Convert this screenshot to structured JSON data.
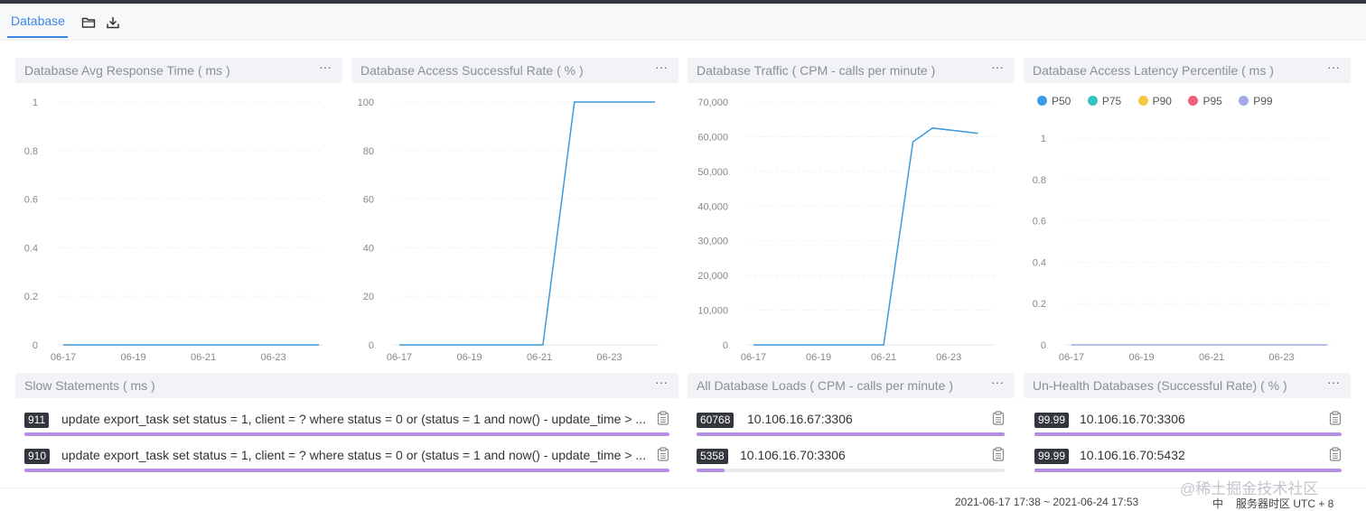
{
  "tabs": [
    {
      "label": "Database",
      "active": true
    }
  ],
  "toolbar": {
    "folder_icon": "folder-icon",
    "download_icon": "download-icon"
  },
  "panels": [
    {
      "title": "Database Avg Response Time ( ms )",
      "more": "···"
    },
    {
      "title": "Database Access Successful Rate ( % )",
      "more": "···"
    },
    {
      "title": "Database Traffic ( CPM - calls per minute )",
      "more": "···"
    },
    {
      "title": "Database Access Latency Percentile ( ms )",
      "more": "···"
    },
    {
      "title": "Slow Statements ( ms )",
      "more": "···"
    },
    {
      "title": "All Database Loads ( CPM - calls per minute )",
      "more": "···"
    },
    {
      "title": "Un-Health Databases (Successful Rate) ( % )",
      "more": "···"
    }
  ],
  "chart_data": [
    {
      "type": "line",
      "title": "Database Avg Response Time ( ms )",
      "x_ticks": [
        "06-17",
        "06-19",
        "06-21",
        "06-23"
      ],
      "y_ticks": [
        "0",
        "0.2",
        "0.4",
        "0.6",
        "0.8",
        "1"
      ],
      "ylim": [
        0,
        1
      ],
      "series": [
        {
          "color": "#3d9ad9",
          "points": [
            [
              0,
              0
            ],
            [
              7.3,
              0
            ]
          ]
        }
      ]
    },
    {
      "type": "line",
      "title": "Database Access Successful Rate ( % )",
      "x_ticks": [
        "06-17",
        "06-19",
        "06-21",
        "06-23"
      ],
      "y_ticks": [
        "0",
        "20",
        "40",
        "60",
        "80",
        "100"
      ],
      "ylim": [
        0,
        100
      ],
      "series": [
        {
          "color": "#3d9ad9",
          "points": [
            [
              0,
              0
            ],
            [
              4.1,
              0
            ],
            [
              5.0,
              100
            ],
            [
              7.3,
              100
            ]
          ]
        }
      ]
    },
    {
      "type": "line",
      "title": "Database Traffic ( CPM - calls per minute )",
      "x_ticks": [
        "06-17",
        "06-19",
        "06-21",
        "06-23"
      ],
      "y_ticks": [
        "0",
        "10,000",
        "20,000",
        "30,000",
        "40,000",
        "50,000",
        "60,000",
        "70,000"
      ],
      "ylim": [
        0,
        70000
      ],
      "series": [
        {
          "color": "#3d9ad9",
          "points": [
            [
              0,
              0
            ],
            [
              4.0,
              0
            ],
            [
              4.9,
              58500
            ],
            [
              5.5,
              62500
            ],
            [
              6.9,
              61000
            ]
          ]
        }
      ]
    },
    {
      "type": "line",
      "title": "Database Access Latency Percentile ( ms )",
      "x_ticks": [
        "06-17",
        "06-19",
        "06-21",
        "06-23"
      ],
      "y_ticks": [
        "0",
        "0.2",
        "0.4",
        "0.6",
        "0.8",
        "1"
      ],
      "ylim": [
        0,
        1
      ],
      "legend": [
        {
          "name": "P50",
          "color": "#3b9be6"
        },
        {
          "name": "P75",
          "color": "#36c2c2"
        },
        {
          "name": "P90",
          "color": "#f5c842"
        },
        {
          "name": "P95",
          "color": "#f0607e"
        },
        {
          "name": "P99",
          "color": "#a3a8e6"
        }
      ],
      "series": [
        {
          "color": "#a3a8e6",
          "points": [
            [
              0,
              0
            ],
            [
              7.3,
              0
            ]
          ]
        }
      ]
    }
  ],
  "slow_statements": [
    {
      "value": "911",
      "text": "update export_task set status = 1, client = ? where status = 0 or (status = 1 and now() - update_time > ...",
      "percent": 100
    },
    {
      "value": "910",
      "text": "update export_task set status = 1, client = ? where status = 0 or (status = 1 and now() - update_time > ...",
      "percent": 100
    }
  ],
  "db_loads": [
    {
      "value": "60768",
      "text": "10.106.16.67:3306",
      "percent": 100
    },
    {
      "value": "5358",
      "text": "10.106.16.70:3306",
      "percent": 9
    }
  ],
  "unhealth_dbs": [
    {
      "value": "99.99",
      "text": "10.106.16.70:3306",
      "percent": 100
    },
    {
      "value": "99.99",
      "text": "10.106.16.70:5432",
      "percent": 100
    }
  ],
  "footer": {
    "range": "2021-06-17 17:38 ~ 2021-06-24 17:53",
    "lang": "中",
    "timezone": "服务器时区 UTC + 8"
  },
  "watermark": "@稀土掘金技术社区"
}
